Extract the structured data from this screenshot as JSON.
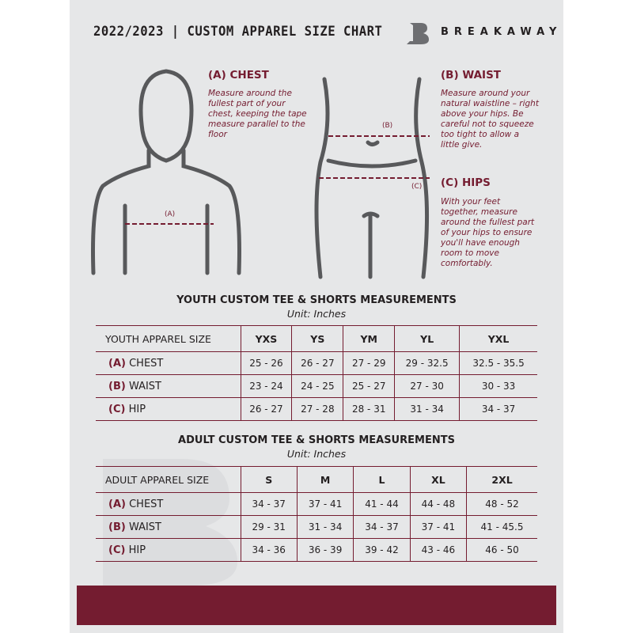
{
  "header": {
    "title": "2022/2023  |  CUSTOM APPAREL SIZE CHART",
    "brand": "BREAKAWAY"
  },
  "chest": {
    "title": "(A) CHEST",
    "desc": "Measure around the fullest part of your chest, keeping the tape measure parallel to the floor",
    "marker": "(A)"
  },
  "waist": {
    "title": "(B) WAIST",
    "desc": "Measure around your natural waistline – right above your hips. Be careful not to squeeze too tight to allow a little give.",
    "marker": "(B)"
  },
  "hips": {
    "title": "(C) HIPS",
    "desc": "With your feet together, measure around the fullest part of your hips to ensure you'll have enough room to move comfortably.",
    "marker": "(C)"
  },
  "youth": {
    "title": "YOUTH CUSTOM TEE & SHORTS MEASUREMENTS",
    "unit": "Unit: Inches",
    "size_label": "YOUTH APPAREL SIZE",
    "sizes": [
      "YXS",
      "YS",
      "YM",
      "YL",
      "YXL"
    ],
    "rows": [
      {
        "letter": "(A)",
        "name": "CHEST",
        "values": [
          "25 - 26",
          "26 - 27",
          "27 - 29",
          "29 - 32.5",
          "32.5 - 35.5"
        ]
      },
      {
        "letter": "(B)",
        "name": "WAIST",
        "values": [
          "23 - 24",
          "24 - 25",
          "25 - 27",
          "27 - 30",
          "30 - 33"
        ]
      },
      {
        "letter": "(C)",
        "name": "HIP",
        "values": [
          "26 - 27",
          "27 - 28",
          "28 - 31",
          "31 - 34",
          "34 - 37"
        ]
      }
    ]
  },
  "adult": {
    "title": "ADULT CUSTOM TEE & SHORTS MEASUREMENTS",
    "unit": "Unit: Inches",
    "size_label": "ADULT APPAREL SIZE",
    "sizes": [
      "S",
      "M",
      "L",
      "XL",
      "2XL"
    ],
    "rows": [
      {
        "letter": "(A)",
        "name": "CHEST",
        "values": [
          "34 - 37",
          "37 - 41",
          "41 - 44",
          "44 - 48",
          "48 - 52"
        ]
      },
      {
        "letter": "(B)",
        "name": "WAIST",
        "values": [
          "29 - 31",
          "31 - 34",
          "34 - 37",
          "37 - 41",
          "41 - 45.5"
        ]
      },
      {
        "letter": "(C)",
        "name": "HIP",
        "values": [
          "34 - 36",
          "36 - 39",
          "39 - 42",
          "43 - 46",
          "46 - 50"
        ]
      }
    ]
  },
  "colors": {
    "accent": "#741c30",
    "background": "#e6e7e8"
  }
}
